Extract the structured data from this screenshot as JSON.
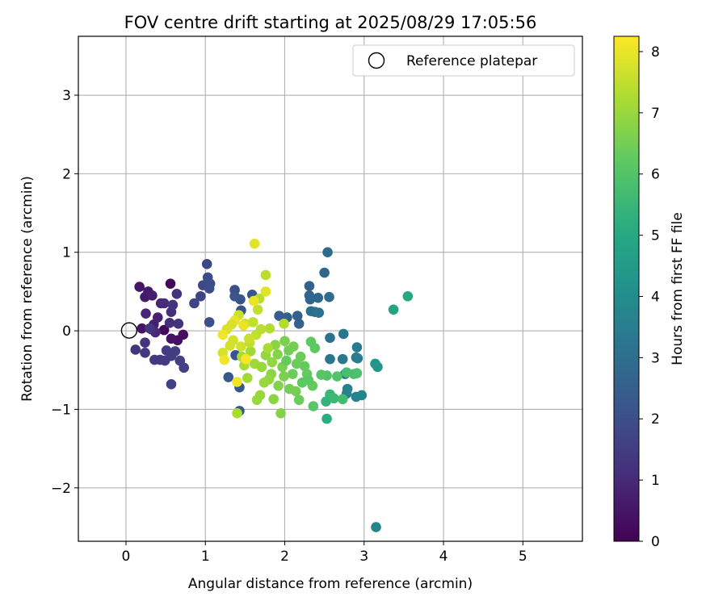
{
  "chart_data": {
    "type": "scatter",
    "title": "FOV centre drift starting at 2025/08/29 17:05:56",
    "xlabel": "Angular distance from reference (arcmin)",
    "ylabel": "Rotation from reference (arcmin)",
    "xlim": [
      -0.6,
      5.75
    ],
    "ylim": [
      -2.68,
      3.75
    ],
    "xticks": [
      0,
      1,
      2,
      3,
      4,
      5
    ],
    "yticks": [
      -2,
      -1,
      0,
      1,
      2,
      3
    ],
    "tick_labels": {
      "x": [
        "0",
        "1",
        "2",
        "3",
        "4",
        "5"
      ],
      "y": [
        "−2",
        "−1",
        "0",
        "1",
        "2",
        "3"
      ]
    },
    "grid": true,
    "legend": {
      "position": "top-right",
      "entries": [
        "Reference platepar"
      ]
    },
    "reference_point": {
      "x": 0,
      "y": 0,
      "label": "Reference platepar"
    },
    "colorbar": {
      "label": "Hours from first FF file",
      "range": [
        0,
        8.25
      ],
      "ticks": [
        0,
        1,
        2,
        3,
        4,
        5,
        6,
        7,
        8
      ],
      "tick_labels": [
        "0",
        "1",
        "2",
        "3",
        "4",
        "5",
        "6",
        "7",
        "8"
      ],
      "colormap": "viridis"
    },
    "points": [
      {
        "x": 0.56,
        "y": 0.6,
        "h": 0.2
      },
      {
        "x": 0.48,
        "y": 0.01,
        "h": 0.2
      },
      {
        "x": 0.65,
        "y": -0.12,
        "h": 0.3
      },
      {
        "x": 0.72,
        "y": -0.05,
        "h": 0.3
      },
      {
        "x": 0.57,
        "y": -0.1,
        "h": 0.4
      },
      {
        "x": 0.17,
        "y": 0.56,
        "h": 0.5
      },
      {
        "x": 0.2,
        "y": 0.03,
        "h": 0.5
      },
      {
        "x": 0.24,
        "y": 0.43,
        "h": 0.6
      },
      {
        "x": 0.28,
        "y": 0.5,
        "h": 0.6
      },
      {
        "x": 0.33,
        "y": 0.45,
        "h": 0.7
      },
      {
        "x": 0.35,
        "y": 0.08,
        "h": 0.7
      },
      {
        "x": 0.32,
        "y": 0.02,
        "h": 0.8
      },
      {
        "x": 0.4,
        "y": 0.17,
        "h": 0.8
      },
      {
        "x": 0.44,
        "y": 0.35,
        "h": 0.9
      },
      {
        "x": 0.25,
        "y": 0.22,
        "h": 0.9
      },
      {
        "x": 0.37,
        "y": -0.02,
        "h": 1.0
      },
      {
        "x": 0.48,
        "y": 0.35,
        "h": 1.0
      },
      {
        "x": 0.55,
        "y": 0.1,
        "h": 1.1
      },
      {
        "x": 0.57,
        "y": 0.24,
        "h": 1.1
      },
      {
        "x": 0.59,
        "y": 0.33,
        "h": 1.2
      },
      {
        "x": 0.64,
        "y": 0.47,
        "h": 1.2
      },
      {
        "x": 0.66,
        "y": 0.09,
        "h": 1.2
      },
      {
        "x": 0.3,
        "y": 0.03,
        "h": 1.3
      },
      {
        "x": 0.24,
        "y": -0.15,
        "h": 1.3
      },
      {
        "x": 0.12,
        "y": -0.24,
        "h": 1.3
      },
      {
        "x": 0.24,
        "y": -0.28,
        "h": 1.4
      },
      {
        "x": 0.36,
        "y": -0.37,
        "h": 1.4
      },
      {
        "x": 0.43,
        "y": -0.37,
        "h": 1.4
      },
      {
        "x": 0.49,
        "y": -0.38,
        "h": 1.5
      },
      {
        "x": 0.51,
        "y": -0.25,
        "h": 1.5
      },
      {
        "x": 0.57,
        "y": -0.32,
        "h": 1.5
      },
      {
        "x": 0.62,
        "y": -0.26,
        "h": 1.5
      },
      {
        "x": 0.68,
        "y": -0.38,
        "h": 1.6
      },
      {
        "x": 0.73,
        "y": -0.47,
        "h": 1.6
      },
      {
        "x": 0.57,
        "y": -0.68,
        "h": 1.6
      },
      {
        "x": 0.86,
        "y": 0.35,
        "h": 1.7
      },
      {
        "x": 0.94,
        "y": 0.44,
        "h": 1.7
      },
      {
        "x": 0.97,
        "y": 0.58,
        "h": 1.8
      },
      {
        "x": 1.02,
        "y": 0.85,
        "h": 1.8
      },
      {
        "x": 1.03,
        "y": 0.68,
        "h": 1.9
      },
      {
        "x": 1.05,
        "y": 0.54,
        "h": 1.9
      },
      {
        "x": 1.06,
        "y": 0.6,
        "h": 1.9
      },
      {
        "x": 1.05,
        "y": 0.11,
        "h": 2.0
      },
      {
        "x": 1.37,
        "y": 0.52,
        "h": 2.0
      },
      {
        "x": 1.44,
        "y": 0.4,
        "h": 2.1
      },
      {
        "x": 1.45,
        "y": 0.26,
        "h": 2.1
      },
      {
        "x": 1.59,
        "y": 0.46,
        "h": 2.2
      },
      {
        "x": 1.37,
        "y": 0.44,
        "h": 2.2
      },
      {
        "x": 1.38,
        "y": -0.31,
        "h": 2.2
      },
      {
        "x": 1.29,
        "y": -0.59,
        "h": 2.3
      },
      {
        "x": 1.43,
        "y": -0.72,
        "h": 2.3
      },
      {
        "x": 1.43,
        "y": -1.02,
        "h": 2.3
      },
      {
        "x": 1.93,
        "y": 0.19,
        "h": 2.4
      },
      {
        "x": 2.03,
        "y": 0.17,
        "h": 2.5
      },
      {
        "x": 2.16,
        "y": 0.19,
        "h": 2.5
      },
      {
        "x": 2.18,
        "y": 0.09,
        "h": 2.6
      },
      {
        "x": 2.31,
        "y": 0.57,
        "h": 2.6
      },
      {
        "x": 2.31,
        "y": 0.45,
        "h": 2.7
      },
      {
        "x": 2.32,
        "y": 0.4,
        "h": 2.7
      },
      {
        "x": 2.42,
        "y": 0.42,
        "h": 2.8
      },
      {
        "x": 2.5,
        "y": 0.74,
        "h": 2.8
      },
      {
        "x": 2.54,
        "y": 1.0,
        "h": 2.9
      },
      {
        "x": 2.56,
        "y": 0.43,
        "h": 2.9
      },
      {
        "x": 2.33,
        "y": 0.25,
        "h": 3.0
      },
      {
        "x": 2.38,
        "y": 0.24,
        "h": 3.0
      },
      {
        "x": 2.43,
        "y": 0.23,
        "h": 3.1
      },
      {
        "x": 2.57,
        "y": -0.09,
        "h": 3.1
      },
      {
        "x": 2.57,
        "y": -0.36,
        "h": 3.2
      },
      {
        "x": 2.74,
        "y": -0.04,
        "h": 3.3
      },
      {
        "x": 2.73,
        "y": -0.36,
        "h": 3.3
      },
      {
        "x": 2.91,
        "y": -0.21,
        "h": 3.4
      },
      {
        "x": 2.9,
        "y": -0.34,
        "h": 3.4
      },
      {
        "x": 2.92,
        "y": -0.35,
        "h": 3.5
      },
      {
        "x": 2.76,
        "y": -0.55,
        "h": 3.6
      },
      {
        "x": 2.79,
        "y": -0.74,
        "h": 3.6
      },
      {
        "x": 2.78,
        "y": -0.8,
        "h": 3.7
      },
      {
        "x": 2.9,
        "y": -0.84,
        "h": 3.7
      },
      {
        "x": 2.97,
        "y": -0.82,
        "h": 3.8
      },
      {
        "x": 3.15,
        "y": -2.5,
        "h": 3.8
      },
      {
        "x": 3.14,
        "y": -0.42,
        "h": 4.3
      },
      {
        "x": 3.17,
        "y": -0.46,
        "h": 4.4
      },
      {
        "x": 3.37,
        "y": 0.27,
        "h": 4.8
      },
      {
        "x": 3.55,
        "y": 0.44,
        "h": 5.0
      },
      {
        "x": 2.53,
        "y": -1.12,
        "h": 5.2
      },
      {
        "x": 2.52,
        "y": -0.9,
        "h": 5.4
      },
      {
        "x": 2.57,
        "y": -0.81,
        "h": 5.5
      },
      {
        "x": 2.62,
        "y": -0.86,
        "h": 5.6
      },
      {
        "x": 2.73,
        "y": -0.87,
        "h": 5.7
      },
      {
        "x": 2.78,
        "y": -0.53,
        "h": 5.8
      },
      {
        "x": 2.87,
        "y": -0.55,
        "h": 5.8
      },
      {
        "x": 2.91,
        "y": -0.54,
        "h": 5.9
      },
      {
        "x": 2.66,
        "y": -0.58,
        "h": 6.0
      },
      {
        "x": 2.53,
        "y": -0.57,
        "h": 6.0
      },
      {
        "x": 2.46,
        "y": -0.56,
        "h": 6.1
      },
      {
        "x": 2.36,
        "y": -0.96,
        "h": 6.1
      },
      {
        "x": 2.33,
        "y": -0.14,
        "h": 6.2
      },
      {
        "x": 2.38,
        "y": -0.22,
        "h": 6.2
      },
      {
        "x": 2.35,
        "y": -0.7,
        "h": 6.3
      },
      {
        "x": 2.28,
        "y": -0.55,
        "h": 6.3
      },
      {
        "x": 2.2,
        "y": -0.33,
        "h": 6.4
      },
      {
        "x": 2.18,
        "y": -0.88,
        "h": 6.4
      },
      {
        "x": 2.14,
        "y": -0.77,
        "h": 6.5
      },
      {
        "x": 2.11,
        "y": -0.2,
        "h": 6.5
      },
      {
        "x": 2.05,
        "y": -0.25,
        "h": 6.5
      },
      {
        "x": 2.0,
        "y": -0.13,
        "h": 6.6
      },
      {
        "x": 1.97,
        "y": -0.46,
        "h": 6.6
      },
      {
        "x": 1.95,
        "y": -1.05,
        "h": 6.7
      },
      {
        "x": 1.91,
        "y": -0.3,
        "h": 6.7
      },
      {
        "x": 1.86,
        "y": -0.87,
        "h": 6.8
      },
      {
        "x": 1.83,
        "y": -0.55,
        "h": 6.8
      },
      {
        "x": 1.8,
        "y": -0.62,
        "h": 6.9
      },
      {
        "x": 1.76,
        "y": -0.31,
        "h": 6.9
      },
      {
        "x": 1.74,
        "y": -0.66,
        "h": 7.0
      },
      {
        "x": 1.69,
        "y": -0.82,
        "h": 7.0
      },
      {
        "x": 1.65,
        "y": -0.88,
        "h": 7.0
      },
      {
        "x": 1.62,
        "y": -0.42,
        "h": 7.1
      },
      {
        "x": 1.57,
        "y": -0.26,
        "h": 7.1
      },
      {
        "x": 1.53,
        "y": -0.6,
        "h": 7.1
      },
      {
        "x": 1.49,
        "y": -0.44,
        "h": 7.2
      },
      {
        "x": 1.46,
        "y": -0.33,
        "h": 7.2
      },
      {
        "x": 1.4,
        "y": -1.05,
        "h": 7.2
      },
      {
        "x": 1.99,
        "y": 0.09,
        "h": 7.3
      },
      {
        "x": 1.81,
        "y": 0.03,
        "h": 7.3
      },
      {
        "x": 1.76,
        "y": 0.71,
        "h": 7.4
      },
      {
        "x": 1.68,
        "y": 0.41,
        "h": 7.4
      },
      {
        "x": 1.66,
        "y": 0.27,
        "h": 7.5
      },
      {
        "x": 1.6,
        "y": 0.11,
        "h": 7.5
      },
      {
        "x": 1.56,
        "y": -0.15,
        "h": 7.5
      },
      {
        "x": 1.5,
        "y": 0.09,
        "h": 7.6
      },
      {
        "x": 1.42,
        "y": 0.2,
        "h": 7.6
      },
      {
        "x": 1.35,
        "y": -0.12,
        "h": 7.7
      },
      {
        "x": 1.31,
        "y": -0.19,
        "h": 7.7
      },
      {
        "x": 1.27,
        "y": 0.02,
        "h": 7.8
      },
      {
        "x": 1.22,
        "y": -0.28,
        "h": 7.8
      },
      {
        "x": 1.62,
        "y": 1.11,
        "h": 7.9
      },
      {
        "x": 1.76,
        "y": 0.5,
        "h": 7.9
      },
      {
        "x": 1.61,
        "y": 0.38,
        "h": 8.0
      },
      {
        "x": 1.48,
        "y": 0.07,
        "h": 8.0
      },
      {
        "x": 1.37,
        "y": 0.13,
        "h": 8.0
      },
      {
        "x": 1.22,
        "y": -0.05,
        "h": 8.1
      },
      {
        "x": 1.4,
        "y": -0.65,
        "h": 8.1
      },
      {
        "x": 1.24,
        "y": -0.37,
        "h": 8.1
      },
      {
        "x": 1.51,
        "y": -0.36,
        "h": 8.2
      },
      {
        "x": 2.02,
        "y": -0.38,
        "h": 6.3
      },
      {
        "x": 2.1,
        "y": -0.55,
        "h": 6.4
      },
      {
        "x": 2.22,
        "y": -0.66,
        "h": 6.2
      },
      {
        "x": 2.25,
        "y": -0.45,
        "h": 6.3
      },
      {
        "x": 1.88,
        "y": -0.18,
        "h": 6.8
      },
      {
        "x": 1.92,
        "y": -0.7,
        "h": 6.7
      },
      {
        "x": 2.06,
        "y": -0.74,
        "h": 6.5
      },
      {
        "x": 1.71,
        "y": -0.46,
        "h": 7.0
      },
      {
        "x": 1.84,
        "y": -0.4,
        "h": 6.9
      },
      {
        "x": 2.15,
        "y": -0.42,
        "h": 6.4
      },
      {
        "x": 2.3,
        "y": -0.63,
        "h": 6.2
      },
      {
        "x": 1.99,
        "y": -0.58,
        "h": 6.6
      },
      {
        "x": 1.64,
        "y": -0.05,
        "h": 7.5
      },
      {
        "x": 1.55,
        "y": -0.1,
        "h": 7.6
      },
      {
        "x": 1.45,
        "y": -0.2,
        "h": 7.7
      },
      {
        "x": 1.33,
        "y": 0.08,
        "h": 7.8
      },
      {
        "x": 1.7,
        "y": 0.02,
        "h": 7.4
      },
      {
        "x": 1.79,
        "y": -0.22,
        "h": 7.2
      }
    ]
  }
}
